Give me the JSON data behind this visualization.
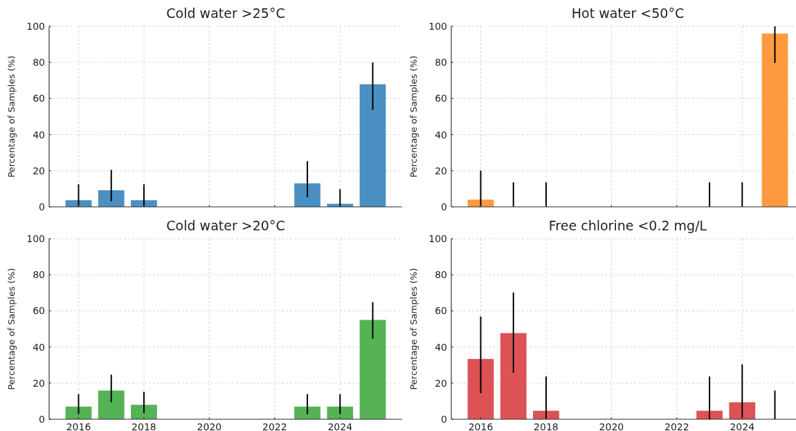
{
  "chart_data": [
    {
      "type": "bar",
      "title": "Cold water >25°C",
      "ylabel": "Percentage of Samples (%)",
      "x": [
        2016,
        2017,
        2018,
        2023,
        2024,
        2025
      ],
      "values": [
        3.7,
        9.2,
        3.7,
        13.0,
        1.7,
        67.9
      ],
      "errors": [
        [
          0,
          12.5
        ],
        [
          3.1,
          20.5
        ],
        [
          0,
          12.5
        ],
        [
          5.4,
          25.3
        ],
        [
          0,
          9.8
        ],
        [
          53.7,
          80
        ]
      ],
      "color": "#4a90c2",
      "xlim": [
        2015.1,
        2025.9
      ],
      "xticks": [
        2016,
        2018,
        2020,
        2022,
        2024
      ],
      "ylim": [
        0,
        100
      ],
      "yticks": [
        0,
        20,
        40,
        60,
        80,
        100
      ],
      "grid": true,
      "tick_labels": "y"
    },
    {
      "type": "bar",
      "title": "Hot water <50°C",
      "ylabel": "Percentage of Samples (%)",
      "x": [
        2016,
        2017,
        2018,
        2023,
        2024,
        2025
      ],
      "values": [
        4.0,
        0,
        0,
        0,
        0,
        96.0
      ],
      "errors": [
        [
          0,
          20.1
        ],
        [
          0,
          13.6
        ],
        [
          0,
          13.6
        ],
        [
          0,
          13.6
        ],
        [
          0,
          13.6
        ],
        [
          79.7,
          100
        ]
      ],
      "color": "#ff9a40",
      "xlim": [
        2015.1,
        2025.9
      ],
      "xticks": [
        2016,
        2018,
        2020,
        2022,
        2024
      ],
      "ylim": [
        0,
        100
      ],
      "yticks": [
        0,
        20,
        40,
        60,
        80,
        100
      ],
      "grid": true,
      "tick_labels": "y"
    },
    {
      "type": "bar",
      "title": "Cold water >20°C",
      "ylabel": "Percentage of Samples (%)",
      "x": [
        2016,
        2017,
        2018,
        2023,
        2024,
        2025
      ],
      "values": [
        7.0,
        15.9,
        8.0,
        7.0,
        7.0,
        55.0
      ],
      "errors": [
        [
          2.8,
          13.9
        ],
        [
          9.4,
          24.7
        ],
        [
          3.4,
          15.2
        ],
        [
          2.8,
          13.9
        ],
        [
          2.8,
          13.9
        ],
        [
          44.6,
          64.9
        ]
      ],
      "color": "#55b255",
      "xlim": [
        2015.1,
        2025.9
      ],
      "xticks": [
        2016,
        2018,
        2020,
        2022,
        2024
      ],
      "ylim": [
        0,
        100
      ],
      "yticks": [
        0,
        20,
        40,
        60,
        80,
        100
      ],
      "grid": true
    },
    {
      "type": "bar",
      "title": "Free chlorine <0.2 mg/L",
      "ylabel": "Percentage of Samples (%)",
      "x": [
        2016,
        2017,
        2018,
        2023,
        2024,
        2025
      ],
      "values": [
        33.4,
        47.7,
        4.7,
        4.7,
        9.4,
        0
      ],
      "errors": [
        [
          14.5,
          56.9
        ],
        [
          25.8,
          70.2
        ],
        [
          0,
          23.7
        ],
        [
          0,
          23.7
        ],
        [
          1.0,
          30.4
        ],
        [
          0,
          15.9
        ]
      ],
      "color": "#dd5254",
      "xlim": [
        2015.1,
        2025.9
      ],
      "xticks": [
        2016,
        2018,
        2020,
        2022,
        2024
      ],
      "ylim": [
        0,
        100
      ],
      "yticks": [
        0,
        20,
        40,
        60,
        80,
        100
      ],
      "grid": true
    }
  ]
}
